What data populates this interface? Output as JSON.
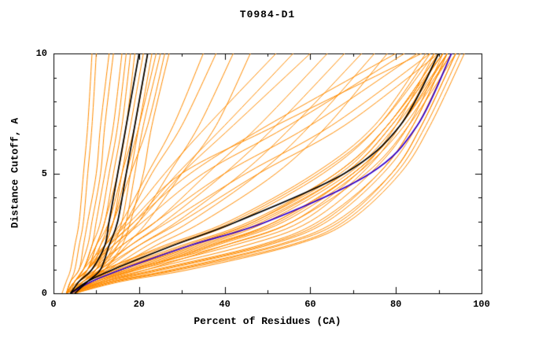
{
  "chart_data": {
    "type": "line",
    "title": "T0984-D1",
    "xlabel": "Percent of Residues (CA)",
    "ylabel": "Distance Cutoff, A",
    "xlim": [
      0,
      100
    ],
    "ylim": [
      0,
      10
    ],
    "x_major_ticks": [
      0,
      20,
      40,
      60,
      80,
      100
    ],
    "x_minor_ticks": [
      10,
      30,
      50,
      70,
      90
    ],
    "y_major_ticks": [
      0,
      5,
      10
    ],
    "y_minor_ticks": [
      1,
      2,
      3,
      4,
      6,
      7,
      8,
      9
    ],
    "grid": false,
    "legend": "none",
    "colors": {
      "ensemble": "#ff8c00",
      "highlight_black": "#000000",
      "highlight_blue": "#3300cc",
      "frame": "#000000",
      "background": "#ffffff"
    },
    "y_samples": [
      0,
      0.5,
      1,
      2,
      3,
      5,
      7,
      10
    ],
    "orange_series_x": [
      [
        4,
        12,
        24,
        48,
        62,
        76,
        84,
        92
      ],
      [
        5,
        14,
        28,
        52,
        66,
        79,
        86,
        94
      ],
      [
        4,
        11,
        22,
        45,
        60,
        74,
        83,
        91
      ],
      [
        3,
        10,
        20,
        42,
        58,
        72,
        81,
        90
      ],
      [
        5,
        15,
        30,
        55,
        68,
        80,
        87,
        95
      ],
      [
        4,
        13,
        26,
        50,
        64,
        77,
        85,
        93
      ],
      [
        4,
        12,
        25,
        49,
        63,
        76,
        84,
        92
      ],
      [
        5,
        16,
        32,
        56,
        69,
        81,
        88,
        96
      ],
      [
        3,
        9,
        18,
        40,
        56,
        71,
        80,
        89
      ],
      [
        4,
        14,
        29,
        53,
        67,
        79,
        86,
        94
      ],
      [
        4,
        8,
        15,
        32,
        47,
        66,
        78,
        90
      ],
      [
        4,
        9,
        16,
        34,
        49,
        68,
        79,
        91
      ],
      [
        5,
        10,
        18,
        36,
        52,
        70,
        81,
        92
      ],
      [
        3,
        7,
        13,
        28,
        43,
        63,
        76,
        88
      ],
      [
        4,
        8,
        14,
        30,
        46,
        66,
        78,
        90
      ],
      [
        5,
        11,
        20,
        38,
        54,
        71,
        82,
        93
      ],
      [
        4,
        9,
        17,
        35,
        50,
        69,
        80,
        92
      ],
      [
        3,
        6,
        12,
        26,
        41,
        61,
        75,
        87
      ],
      [
        4,
        10,
        19,
        37,
        53,
        70,
        81,
        92
      ],
      [
        5,
        12,
        22,
        40,
        56,
        73,
        83,
        94
      ],
      [
        4,
        8,
        15,
        31,
        47,
        67,
        78,
        91
      ],
      [
        3,
        7,
        12,
        27,
        42,
        62,
        76,
        89
      ],
      [
        4,
        9,
        16,
        33,
        48,
        68,
        79,
        91
      ],
      [
        5,
        10,
        19,
        37,
        52,
        70,
        81,
        93
      ],
      [
        4,
        6,
        9,
        16,
        24,
        40,
        60,
        85
      ],
      [
        3,
        5,
        8,
        14,
        21,
        35,
        55,
        82
      ],
      [
        4,
        6,
        10,
        18,
        27,
        45,
        65,
        88
      ],
      [
        3,
        5,
        8,
        13,
        19,
        32,
        50,
        80
      ],
      [
        4,
        7,
        11,
        20,
        30,
        48,
        68,
        90
      ],
      [
        3,
        5,
        7,
        12,
        18,
        30,
        52,
        86
      ],
      [
        4,
        6,
        9,
        14,
        20,
        30,
        42,
        60
      ],
      [
        4,
        7,
        11,
        18,
        26,
        40,
        52,
        68
      ],
      [
        5,
        8,
        13,
        22,
        32,
        48,
        60,
        75
      ],
      [
        4,
        6,
        10,
        16,
        24,
        36,
        48,
        64
      ],
      [
        3,
        5,
        8,
        12,
        17,
        26,
        36,
        52
      ],
      [
        4,
        7,
        12,
        20,
        29,
        44,
        56,
        72
      ],
      [
        5,
        9,
        14,
        24,
        35,
        52,
        64,
        78
      ],
      [
        3,
        5,
        8,
        13,
        19,
        29,
        40,
        56
      ],
      [
        3,
        5,
        7,
        9,
        10,
        12,
        14,
        16
      ],
      [
        4,
        6,
        8,
        10,
        12,
        14,
        16,
        18
      ],
      [
        4,
        6,
        9,
        11,
        13,
        15,
        17,
        20
      ],
      [
        5,
        7,
        10,
        12,
        14,
        16,
        18,
        21
      ],
      [
        3,
        5,
        8,
        10,
        12,
        15,
        17,
        19
      ],
      [
        4,
        7,
        10,
        13,
        15,
        17,
        19,
        22
      ],
      [
        5,
        8,
        11,
        14,
        16,
        18,
        20,
        23
      ],
      [
        4,
        6,
        9,
        12,
        14,
        17,
        20,
        24
      ],
      [
        3,
        5,
        7,
        10,
        13,
        16,
        19,
        22
      ],
      [
        4,
        7,
        11,
        15,
        17,
        19,
        21,
        25
      ],
      [
        5,
        8,
        12,
        16,
        18,
        21,
        23,
        27
      ],
      [
        4,
        6,
        8,
        11,
        14,
        18,
        22,
        26
      ],
      [
        3,
        4,
        6,
        8,
        9,
        11,
        12,
        14
      ],
      [
        4,
        5,
        7,
        9,
        11,
        13,
        15,
        17
      ],
      [
        3,
        4,
        5,
        6,
        7,
        8,
        9,
        10
      ],
      [
        3,
        4,
        6,
        7,
        8,
        10,
        11,
        13
      ],
      [
        2,
        3,
        4,
        5,
        6,
        7,
        8,
        9
      ],
      [
        4,
        6,
        9,
        13,
        17,
        23,
        30,
        38
      ],
      [
        3,
        5,
        8,
        12,
        16,
        22,
        28,
        35
      ],
      [
        4,
        7,
        10,
        15,
        20,
        27,
        34,
        42
      ],
      [
        5,
        8,
        12,
        17,
        22,
        30,
        38,
        46
      ]
    ],
    "highlight_series": [
      {
        "name": "blue-model-curve",
        "color": "#3300cc",
        "x": [
          4,
          9,
          16,
          32,
          50,
          74,
          85,
          93
        ]
      },
      {
        "name": "black-model-curve-left-1",
        "color": "#000000",
        "x": [
          4,
          6,
          9,
          12,
          13,
          15,
          17,
          20
        ]
      },
      {
        "name": "black-model-curve-left-2",
        "color": "#000000",
        "x": [
          5,
          8,
          11,
          13,
          15,
          17,
          19,
          22
        ]
      },
      {
        "name": "black-model-curve-right",
        "color": "#000000",
        "x": [
          4,
          8,
          14,
          28,
          43,
          68,
          81,
          90
        ]
      }
    ]
  }
}
